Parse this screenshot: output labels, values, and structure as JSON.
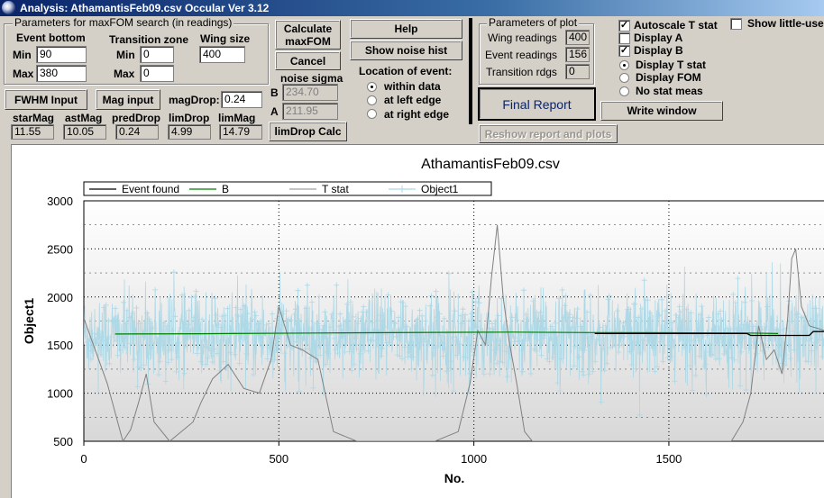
{
  "window": {
    "title": "Analysis: AthamantisFeb09.csv  Occular Ver 3.12"
  },
  "maxfom": {
    "group_title": "Parameters for maxFOM search (in readings)",
    "event_bottom_label": "Event bottom",
    "transition_label": "Transition zone",
    "wing_size_label": "Wing size",
    "min_label": "Min",
    "max_label": "Max",
    "event_bottom_min": "90",
    "event_bottom_max": "380",
    "transition_min": "0",
    "transition_max": "0",
    "wing_size": "400"
  },
  "buttons": {
    "calc_maxfom": "Calculate maxFOM",
    "cancel": "Cancel",
    "help": "Help",
    "show_noise_hist": "Show noise hist",
    "fwhm_input": "FWHM Input",
    "mag_input": "Mag input",
    "limdrop_calc": "limDrop Calc",
    "final_report": "Final Report",
    "write_window": "Write window",
    "reshow": "Reshow report and plots"
  },
  "magdrop": {
    "label": "magDrop:",
    "value": "0.24"
  },
  "noise_sigma": {
    "label": "noise sigma",
    "b_label": "B",
    "b_value": "234.70",
    "a_label": "A",
    "a_value": "211.95"
  },
  "location": {
    "title": "Location of event:",
    "options": [
      "within data",
      "at left edge",
      "at right edge"
    ],
    "selected": 0
  },
  "stats": {
    "labels": [
      "starMag",
      "astMag",
      "predDrop",
      "limDrop",
      "limMag"
    ],
    "values": [
      "11.55",
      "10.05",
      "0.24",
      "4.99",
      "14.79"
    ]
  },
  "plot_params": {
    "group_title": "Parameters of plot",
    "wing_label": "Wing readings",
    "wing_value": "400",
    "event_label": "Event readings",
    "event_value": "156",
    "transition_label": "Transition rdgs",
    "transition_value": "0"
  },
  "display": {
    "autoscale": {
      "label": "Autoscale T stat",
      "checked": true
    },
    "display_a": {
      "label": "Display A",
      "checked": false
    },
    "display_b": {
      "label": "Display B",
      "checked": true
    },
    "radios": [
      "Display T stat",
      "Display FOM",
      "No stat meas"
    ],
    "selected": 0,
    "show_little": {
      "label": "Show little-used",
      "checked": false
    }
  },
  "chart_data": {
    "type": "line",
    "title": "AthamantisFeb09.csv",
    "xlabel": "No.",
    "ylabel": "Object1",
    "xlim": [
      0,
      1900
    ],
    "ylim": [
      500,
      3000
    ],
    "xticks": [
      "0",
      "500",
      "1000",
      "1500"
    ],
    "yticks": [
      "500",
      "1000",
      "1500",
      "2000",
      "2500",
      "3000"
    ],
    "grid": true,
    "legend_position": "top-left",
    "series": [
      {
        "name": "Event found",
        "color": "#000000",
        "x": [
          1310,
          1700,
          1710,
          1780,
          1790,
          1860,
          1870,
          1900
        ],
        "y": [
          1620,
          1620,
          1600,
          1600,
          1600,
          1600,
          1640,
          1640
        ]
      },
      {
        "name": "B",
        "color": "#008000",
        "x": [
          80,
          300,
          600,
          900,
          1100,
          1310,
          1500,
          1700,
          1780
        ],
        "y": [
          1615,
          1618,
          1625,
          1632,
          1635,
          1630,
          1628,
          1625,
          1620
        ]
      },
      {
        "name": "T stat",
        "color": "#808080",
        "x": [
          0,
          60,
          100,
          120,
          140,
          160,
          180,
          220,
          250,
          280,
          300,
          330,
          370,
          410,
          450,
          480,
          500,
          530,
          560,
          600,
          640,
          700,
          750,
          800,
          850,
          900,
          960,
          990,
          1010,
          1030,
          1045,
          1060,
          1075,
          1090,
          1110,
          1130,
          1150,
          1200,
          1300,
          1400,
          1500,
          1600,
          1660,
          1690,
          1710,
          1730,
          1750,
          1770,
          1790,
          1805,
          1815,
          1825,
          1840,
          1860,
          1900
        ],
        "y": [
          1780,
          1100,
          500,
          620,
          900,
          1200,
          700,
          500,
          600,
          700,
          900,
          1150,
          1300,
          1050,
          1000,
          1350,
          1900,
          1500,
          1450,
          1350,
          600,
          500,
          500,
          500,
          500,
          500,
          600,
          1100,
          1650,
          1500,
          2200,
          2750,
          2000,
          1550,
          1100,
          600,
          500,
          500,
          500,
          500,
          500,
          500,
          500,
          700,
          1000,
          1700,
          1350,
          1450,
          1200,
          1800,
          2400,
          2500,
          1900,
          1700,
          1650
        ]
      },
      {
        "name": "Object1",
        "color": "#add8e6",
        "noise": true,
        "center": 1600,
        "sigma": 220,
        "points": 1900
      }
    ]
  }
}
